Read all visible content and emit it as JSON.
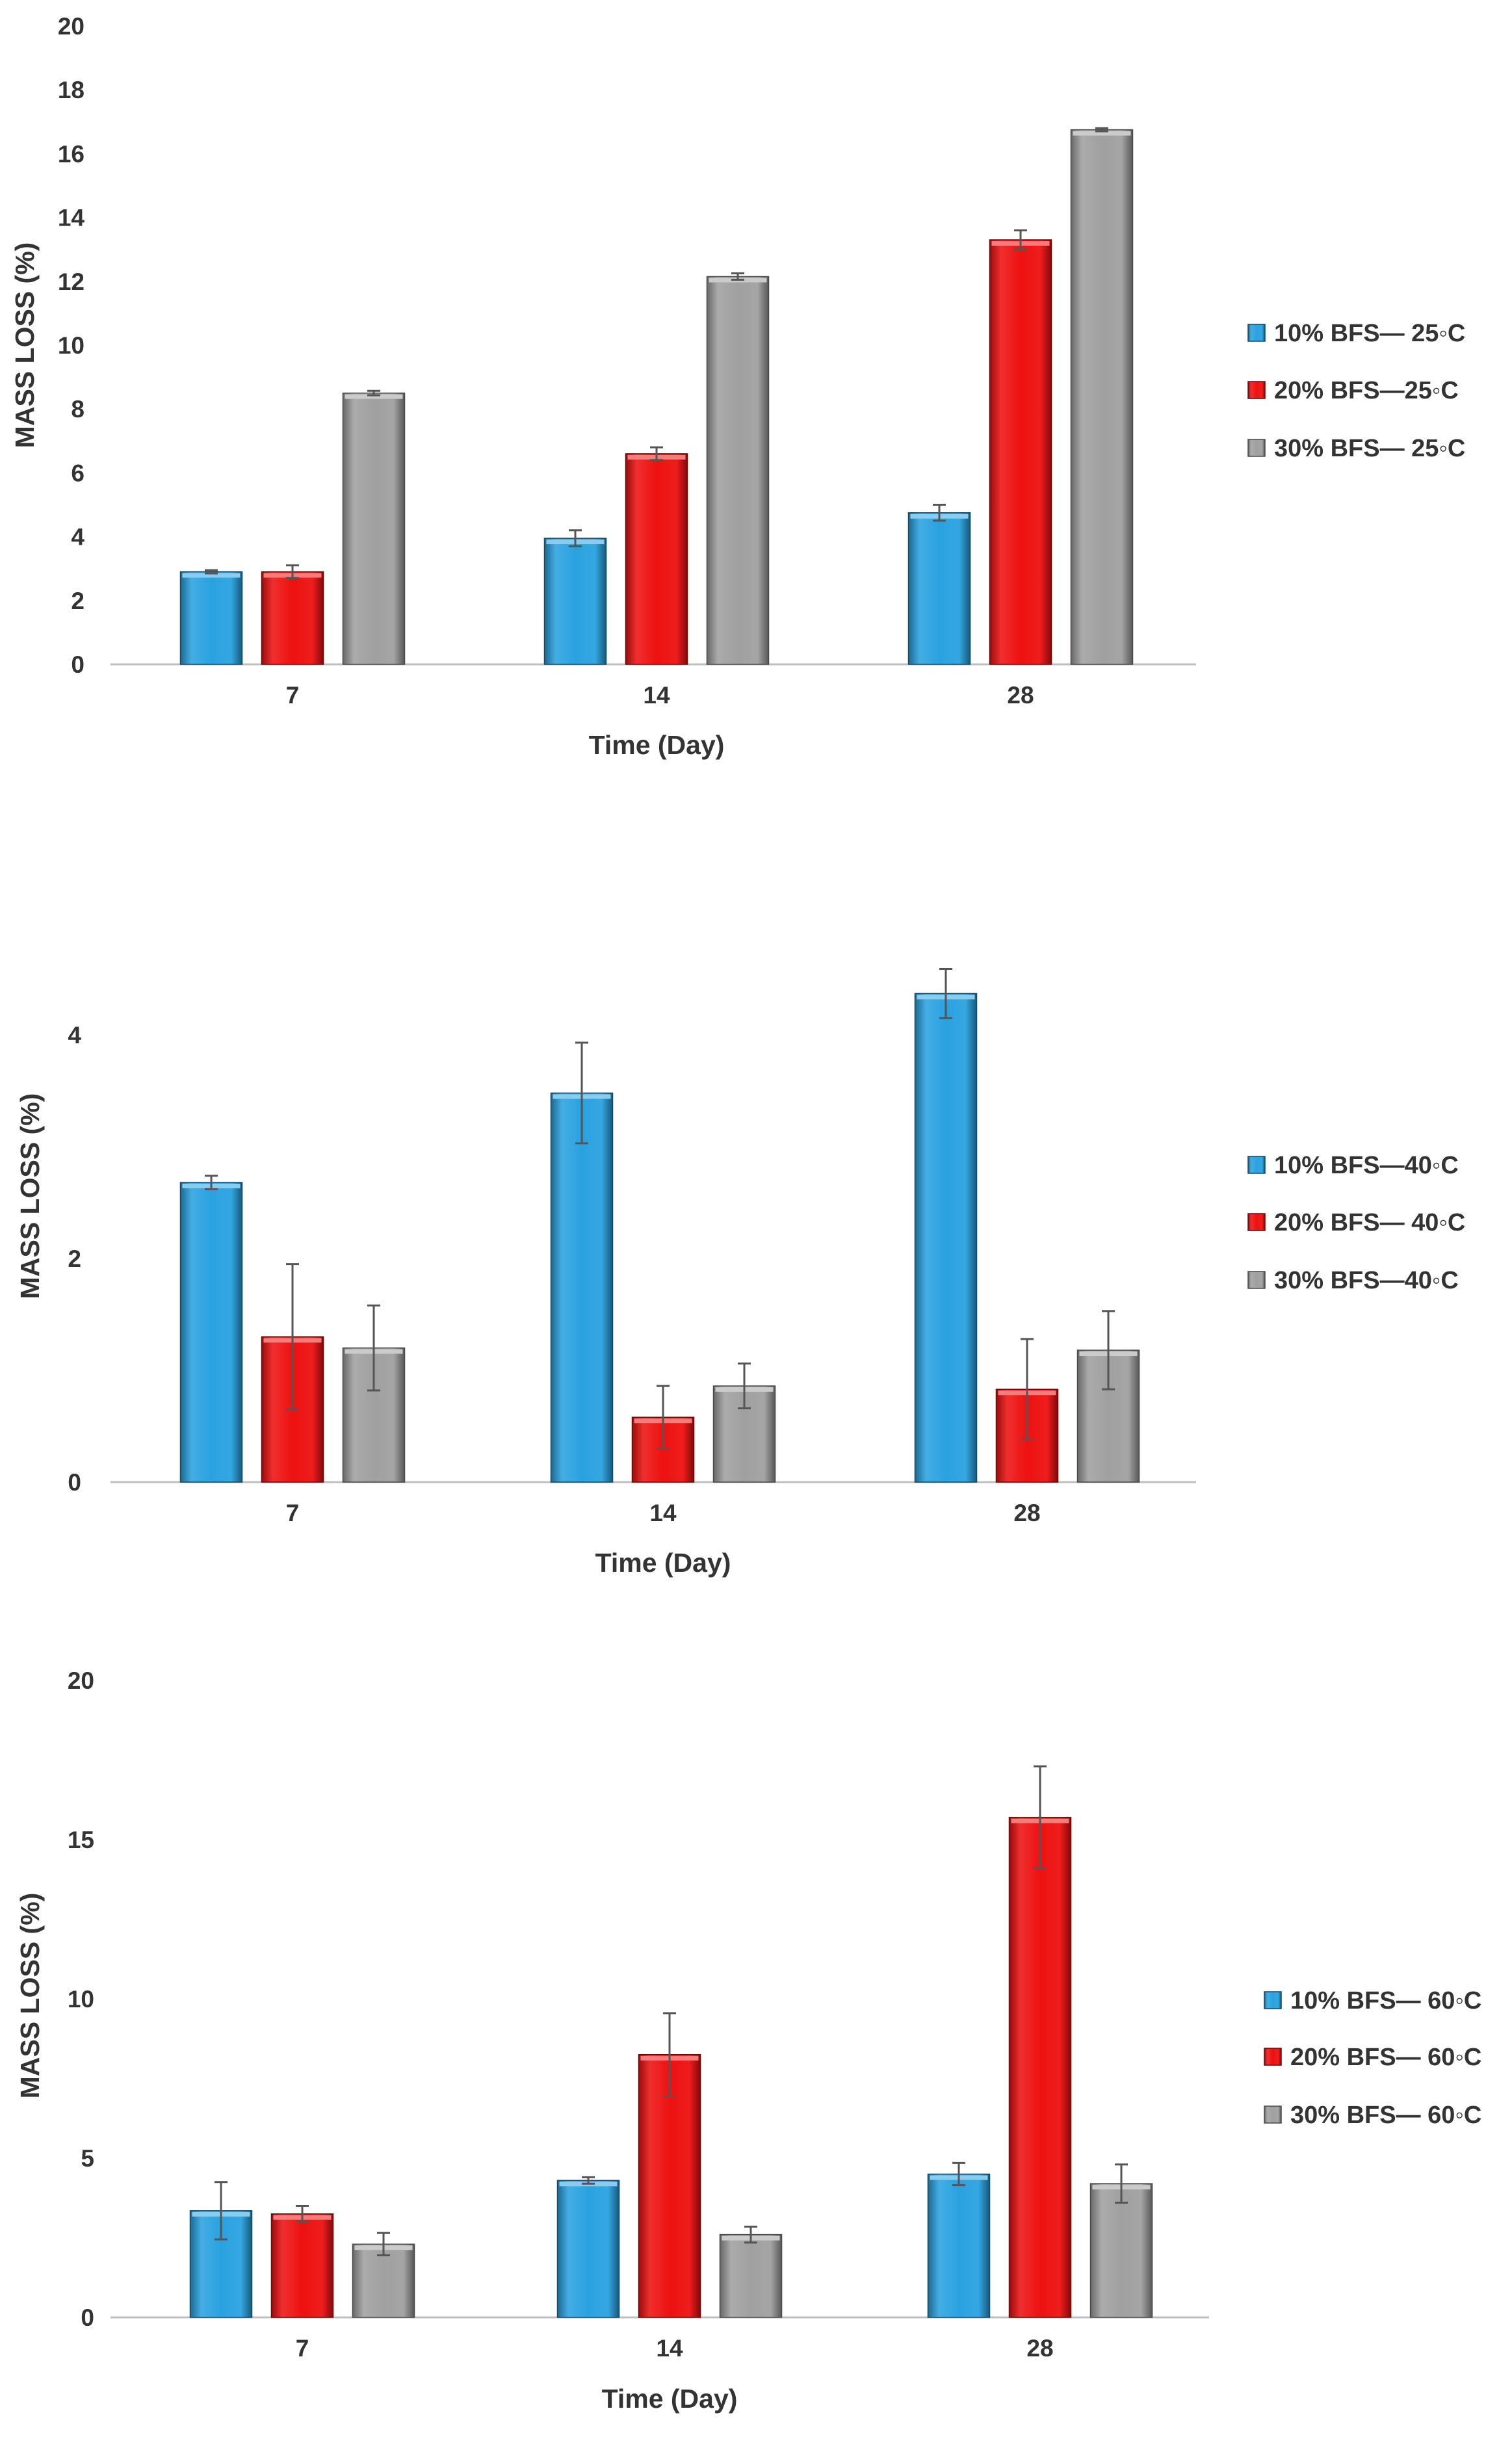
{
  "chart_data": [
    {
      "type": "bar",
      "title": "",
      "xlabel": "Time (Day)",
      "ylabel": "MASS LOSS (%)",
      "categories": [
        "7",
        "14",
        "28"
      ],
      "ylim": [
        0,
        20
      ],
      "yticks": [
        "0",
        "2",
        "4",
        "6",
        "8",
        "10",
        "12",
        "14",
        "16",
        "18",
        "20"
      ],
      "grid": false,
      "legend_position": "right",
      "series": [
        {
          "name": "10% BFS— 25◦C",
          "color": "#2aa2e0",
          "values": [
            2.9,
            3.95,
            4.75
          ],
          "errors": [
            0.05,
            0.25,
            0.25
          ]
        },
        {
          "name": "20% BFS—25◦C",
          "color": "#ee1111",
          "values": [
            2.9,
            6.6,
            13.3
          ],
          "errors": [
            0.2,
            0.2,
            0.3
          ]
        },
        {
          "name": "30% BFS— 25◦C",
          "color": "#a0a0a0",
          "values": [
            8.5,
            12.15,
            16.75
          ],
          "errors": [
            0.07,
            0.1,
            0.05
          ]
        }
      ]
    },
    {
      "type": "bar",
      "title": "",
      "xlabel": "Time (Day)",
      "ylabel": "MASS LOSS (%)",
      "categories": [
        "7",
        "14",
        "28"
      ],
      "ylim": [
        0,
        5
      ],
      "yticks": [
        "0",
        "2",
        "4"
      ],
      "grid": false,
      "legend_position": "right",
      "series": [
        {
          "name": "10% BFS—40◦C",
          "color": "#2aa2e0",
          "values": [
            2.68,
            3.48,
            4.37
          ],
          "errors": [
            0.06,
            0.45,
            0.22
          ]
        },
        {
          "name": "20% BFS— 40◦C",
          "color": "#ee1111",
          "values": [
            1.3,
            0.58,
            0.83
          ],
          "errors": [
            0.65,
            0.28,
            0.45
          ]
        },
        {
          "name": "30% BFS—40◦C",
          "color": "#a0a0a0",
          "values": [
            1.2,
            0.86,
            1.18
          ],
          "errors": [
            0.38,
            0.2,
            0.35
          ]
        }
      ]
    },
    {
      "type": "bar",
      "title": "",
      "xlabel": "Time (Day)",
      "ylabel": "MASS LOSS (%)",
      "categories": [
        "7",
        "14",
        "28"
      ],
      "ylim": [
        0,
        20
      ],
      "yticks": [
        "0",
        "5",
        "10",
        "15",
        "20"
      ],
      "grid": false,
      "legend_position": "right",
      "series": [
        {
          "name": "10% BFS— 60◦C",
          "color": "#2aa2e0",
          "values": [
            3.35,
            4.3,
            4.5
          ],
          "errors": [
            0.9,
            0.1,
            0.35
          ]
        },
        {
          "name": "20% BFS— 60◦C",
          "color": "#ee1111",
          "values": [
            3.25,
            8.25,
            15.7
          ],
          "errors": [
            0.25,
            1.3,
            1.6
          ]
        },
        {
          "name": "30% BFS— 60◦C",
          "color": "#a0a0a0",
          "values": [
            2.3,
            2.6,
            4.2
          ],
          "errors": [
            0.35,
            0.25,
            0.6
          ]
        }
      ]
    }
  ]
}
